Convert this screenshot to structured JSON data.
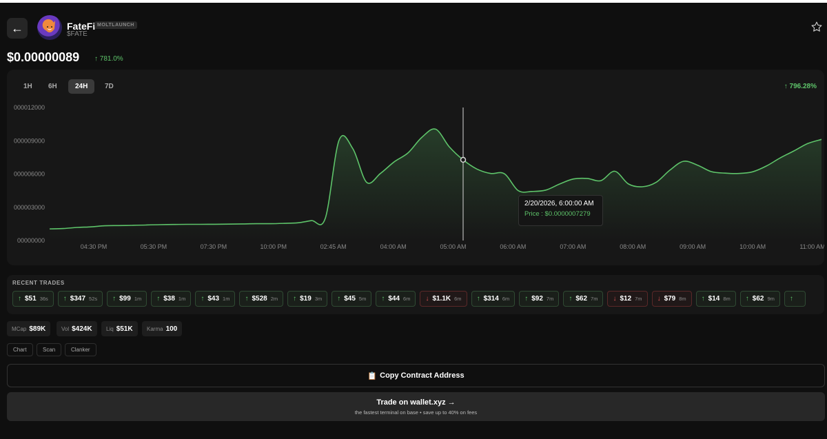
{
  "header": {
    "back_label": "←",
    "token_name": "FateFi",
    "badge": "MOLTLAUNCH",
    "ticker": "$FATE",
    "star_icon": "star-icon"
  },
  "price": {
    "value": "$0.00000089",
    "change": "↑ 781.0%"
  },
  "chart": {
    "timeframes": [
      "1H",
      "6H",
      "24H",
      "7D"
    ],
    "active_timeframe": "24H",
    "change": "↑ 796.28%",
    "tooltip": {
      "date": "2/20/2026, 6:00:00 AM",
      "price": "Price : $0.0000007279"
    },
    "line_color": "#5ec46a"
  },
  "chart_data": {
    "type": "area",
    "title": "",
    "xlabel": "",
    "ylabel": "",
    "y_tick_labels": [
      "000012000",
      "000009000",
      "000006000",
      "000003000",
      "00000000"
    ],
    "y_ticks": [
      1.2e-06,
      9e-07,
      6e-07,
      3e-07,
      0
    ],
    "ylim": [
      0,
      1.2e-06
    ],
    "x_tick_labels": [
      "04:30 PM",
      "05:30 PM",
      "07:30 PM",
      "10:00 PM",
      "02:45 AM",
      "04:00 AM",
      "05:00 AM",
      "06:00 AM",
      "07:00 AM",
      "08:00 AM",
      "09:00 AM",
      "10:00 AM",
      "11:00 AM"
    ],
    "grid": false,
    "series": [
      {
        "values": [
          1.05e-07,
          1.08e-07,
          1.18e-07,
          1.23e-07,
          1.33e-07,
          1.35e-07,
          1.37e-07,
          1.4e-07,
          1.43e-07,
          1.45e-07,
          1.46e-07,
          1.46e-07,
          1.47e-07,
          1.48e-07,
          1.5e-07,
          1.52e-07,
          1.52e-07,
          1.55e-07,
          1.6e-07,
          1.8e-07,
          2e-07,
          9.05e-07,
          8.28e-07,
          5.25e-07,
          6.05e-07,
          7.1e-07,
          7.9e-07,
          9.3e-07,
          1.005e-06,
          8.45e-07,
          7.28e-07,
          6.45e-07,
          6.05e-07,
          6.02e-07,
          4.5e-07,
          4.43e-07,
          4.55e-07,
          5.1e-07,
          5.55e-07,
          5.6e-07,
          5.4e-07,
          6.25e-07,
          5.1e-07,
          4.85e-07,
          5.25e-07,
          6.35e-07,
          7.15e-07,
          6.8e-07,
          6.22e-07,
          6.08e-07,
          6.05e-07,
          6.2e-07,
          6.72e-07,
          7.45e-07,
          8.08e-07,
          8.75e-07,
          9.12e-07
        ]
      }
    ],
    "hover_index": 30
  },
  "trades": {
    "title": "RECENT TRADES",
    "items": [
      {
        "dir": "up",
        "arrow": "↑",
        "amount": "$51",
        "age": "36s"
      },
      {
        "dir": "up",
        "arrow": "↑",
        "amount": "$347",
        "age": "52s"
      },
      {
        "dir": "up",
        "arrow": "↑",
        "amount": "$99",
        "age": "1m"
      },
      {
        "dir": "up",
        "arrow": "↑",
        "amount": "$38",
        "age": "1m"
      },
      {
        "dir": "up",
        "arrow": "↑",
        "amount": "$43",
        "age": "1m"
      },
      {
        "dir": "up",
        "arrow": "↑",
        "amount": "$528",
        "age": "2m"
      },
      {
        "dir": "up",
        "arrow": "↑",
        "amount": "$19",
        "age": "3m"
      },
      {
        "dir": "up",
        "arrow": "↑",
        "amount": "$45",
        "age": "5m"
      },
      {
        "dir": "up",
        "arrow": "↑",
        "amount": "$44",
        "age": "6m"
      },
      {
        "dir": "down",
        "arrow": "↓",
        "amount": "$1.1K",
        "age": "6m"
      },
      {
        "dir": "up",
        "arrow": "↑",
        "amount": "$314",
        "age": "6m"
      },
      {
        "dir": "up",
        "arrow": "↑",
        "amount": "$92",
        "age": "7m"
      },
      {
        "dir": "up",
        "arrow": "↑",
        "amount": "$62",
        "age": "7m"
      },
      {
        "dir": "down",
        "arrow": "↓",
        "amount": "$12",
        "age": "7m"
      },
      {
        "dir": "down",
        "arrow": "↓",
        "amount": "$79",
        "age": "8m"
      },
      {
        "dir": "up",
        "arrow": "↑",
        "amount": "$14",
        "age": "8m"
      },
      {
        "dir": "up",
        "arrow": "↑",
        "amount": "$62",
        "age": "9m"
      },
      {
        "dir": "up",
        "arrow": "↑",
        "amount": "",
        "age": ""
      }
    ]
  },
  "stats": [
    {
      "key": "MCap",
      "value": "$89K"
    },
    {
      "key": "Vol",
      "value": "$424K"
    },
    {
      "key": "Liq",
      "value": "$51K"
    },
    {
      "key": "Karma",
      "value": "100"
    }
  ],
  "links": [
    "Chart",
    "Scan",
    "Clanker"
  ],
  "copy_button": {
    "icon": "clipboard-icon",
    "emoji": "📋",
    "label": "Copy Contract Address"
  },
  "trade_button": {
    "label": "Trade on wallet.xyz →",
    "subtitle": "the fastest terminal on base • save up to 40% on fees"
  }
}
